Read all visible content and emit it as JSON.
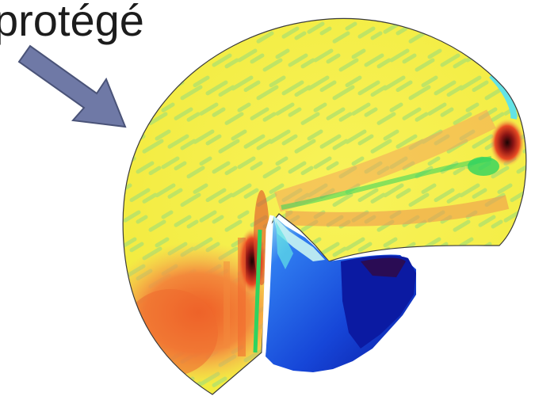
{
  "annotation": {
    "label": "protégé",
    "arrow_color": "#6f79a6",
    "arrow_edge_color": "#4a5378"
  },
  "field_plot": {
    "palette": {
      "background_yellow": "#f6f04a",
      "light_green": "#b6e26a",
      "green": "#2fd35f",
      "orange": "#f7b55a",
      "red_orange": "#f0682d",
      "dark_red": "#8a1414",
      "near_black": "#2a0a0a",
      "cyan": "#63e3e6",
      "light_blue": "#2f7cf0",
      "blue": "#1646d8",
      "dark_blue": "#0b1aa2",
      "navy": "#10136e",
      "dark_purple": "#2a0c54",
      "outline": "#3a3a3a"
    }
  }
}
